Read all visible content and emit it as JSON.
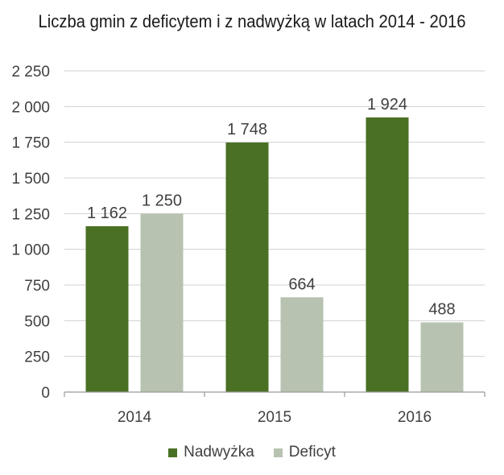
{
  "chart_data": {
    "type": "bar",
    "title": "Liczba gmin z deficytem i z nadwyżką w latach 2014 - 2016",
    "categories": [
      "2014",
      "2015",
      "2016"
    ],
    "series": [
      {
        "name": "Nadwyżka",
        "values": [
          1162,
          1748,
          1924
        ],
        "labels": [
          "1 162",
          "1 748",
          "1 924"
        ],
        "color": "#4a7023"
      },
      {
        "name": "Deficyt",
        "values": [
          1250,
          664,
          488
        ],
        "labels": [
          "1 250",
          "664",
          "488"
        ],
        "color": "#b7c3b0"
      }
    ],
    "yticks": [
      0,
      250,
      500,
      750,
      1000,
      1250,
      1500,
      1750,
      2000,
      2250
    ],
    "ytick_labels": [
      "0",
      "250",
      "500",
      "750",
      "1 000",
      "1 250",
      "1 500",
      "1 750",
      "2 000",
      "2 250"
    ],
    "ylim": [
      0,
      2250
    ],
    "xlabel": "",
    "ylabel": "",
    "grid": true,
    "legend_position": "bottom"
  }
}
